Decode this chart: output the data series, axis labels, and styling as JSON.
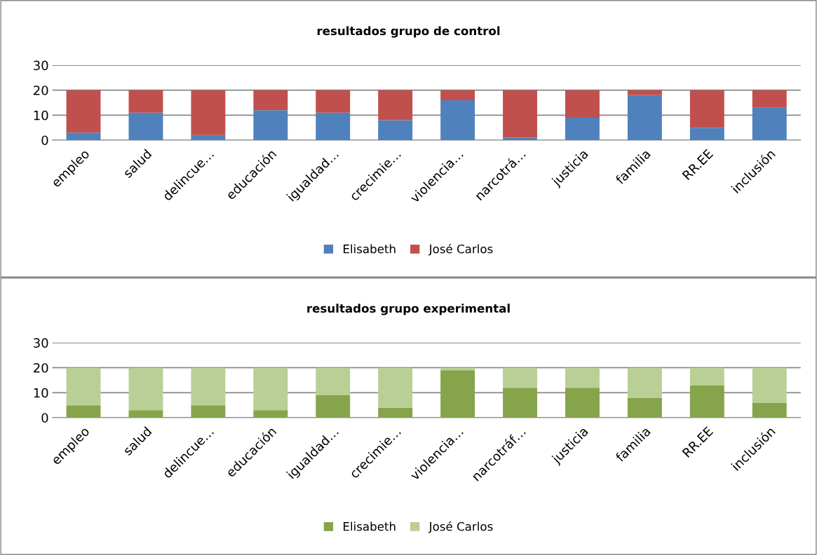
{
  "chart_data": [
    {
      "type": "bar",
      "title": "resultados grupo de control",
      "stacked": true,
      "categories": [
        "empleo",
        "salud",
        "delincue…",
        "educación",
        "igualdad…",
        "crecimie…",
        "violencia…",
        "narcotrá…",
        "justicia",
        "familia",
        "RR.EE",
        "inclusión"
      ],
      "series": [
        {
          "name": "Elisabeth",
          "color": "#4f81bd",
          "values": [
            3,
            11,
            2,
            12,
            11,
            8,
            16,
            1,
            9,
            18,
            5,
            13
          ]
        },
        {
          "name": "José Carlos",
          "color": "#c0504d",
          "values": [
            17,
            9,
            18,
            8,
            9,
            12,
            4,
            19,
            11,
            2,
            15,
            7
          ]
        }
      ],
      "ylim": [
        0,
        30
      ],
      "yticks": [
        0,
        10,
        20,
        30
      ],
      "grid": "y",
      "legend": "bottom"
    },
    {
      "type": "bar",
      "title": "resultados grupo experimental",
      "stacked": true,
      "categories": [
        "empleo",
        "salud",
        "delincue…",
        "educación",
        "igualdad…",
        "crecimie…",
        "violencia…",
        "narcotráf…",
        "justicia",
        "familia",
        "RR.EE",
        "inclusión"
      ],
      "series": [
        {
          "name": "Elisabeth",
          "color": "#86a44a",
          "values": [
            5,
            3,
            5,
            3,
            9,
            4,
            19,
            12,
            12,
            8,
            13,
            6
          ]
        },
        {
          "name": "José Carlos",
          "color": "#b9cf96",
          "values": [
            15,
            17,
            15,
            17,
            11,
            16,
            1,
            8,
            8,
            12,
            7,
            14
          ]
        }
      ],
      "ylim": [
        0,
        30
      ],
      "yticks": [
        0,
        10,
        20,
        30
      ],
      "grid": "y",
      "legend": "bottom"
    }
  ]
}
